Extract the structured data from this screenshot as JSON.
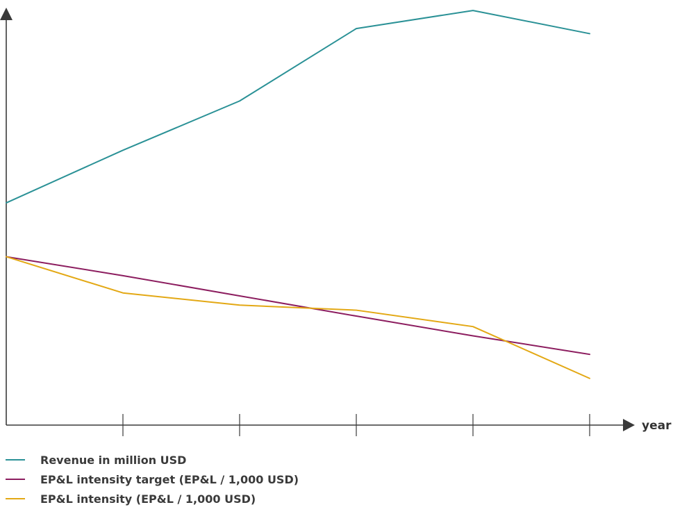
{
  "chart_data": {
    "type": "line",
    "xlabel": "year",
    "ylabel": "",
    "x": [
      0,
      1,
      2,
      3,
      4,
      5
    ],
    "ylim": [
      0,
      100
    ],
    "grid": false,
    "legend_placement": "bottom-left",
    "series": [
      {
        "name": "Revenue in million USD",
        "color": "#2a9196",
        "values": [
          52.8,
          65.3,
          77.0,
          94.2,
          98.5,
          93.0
        ]
      },
      {
        "name": "EP&L intensity target (EP&L / 1,000 USD)",
        "color": "#8c1d5f",
        "values": [
          40.0,
          35.5,
          30.7,
          25.9,
          21.2,
          16.8
        ]
      },
      {
        "name": "EP&L intensity (EP&L / 1,000 USD)",
        "color": "#e3a814",
        "values": [
          40.0,
          31.4,
          28.5,
          27.3,
          23.4,
          11.1
        ]
      }
    ]
  }
}
